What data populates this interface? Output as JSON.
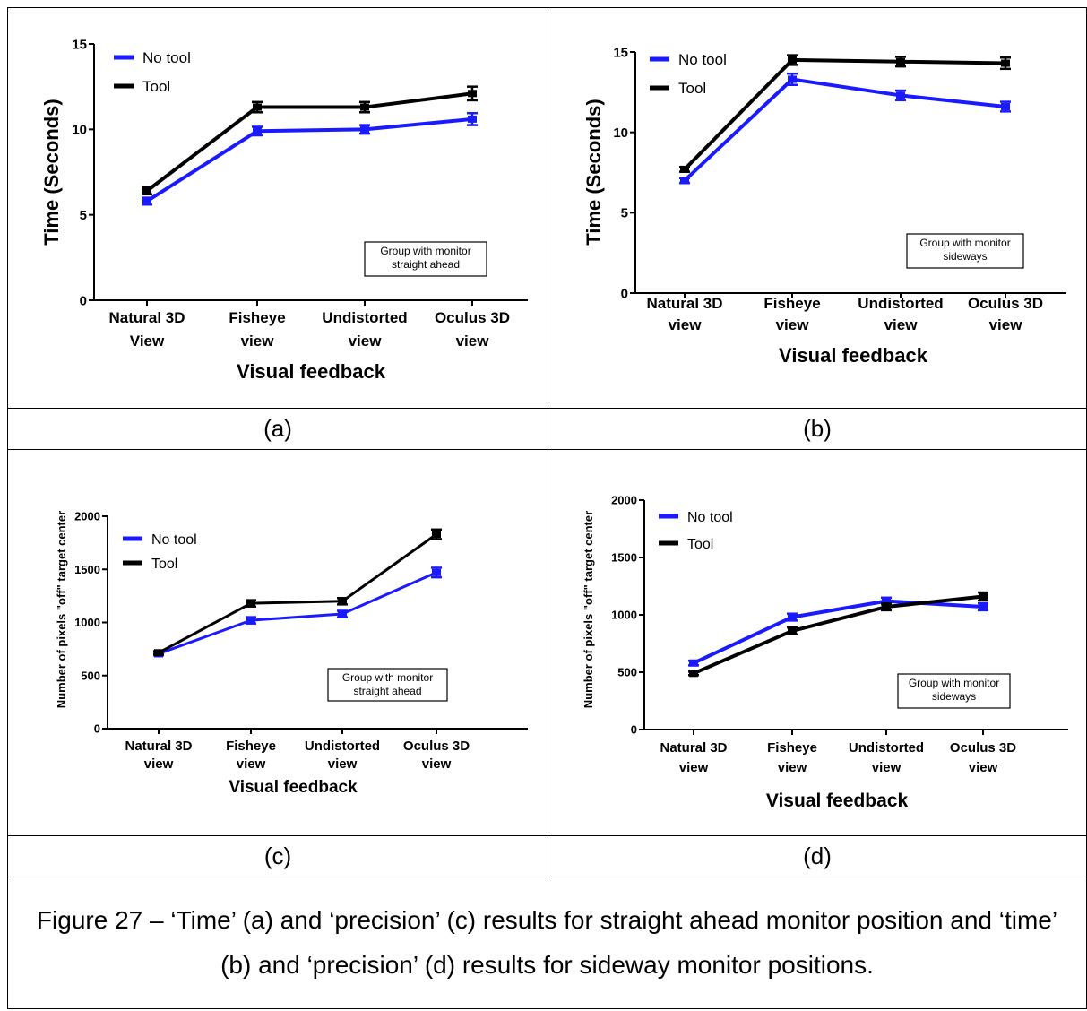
{
  "colors": {
    "no_tool": "#1a1aff",
    "tool": "#000000",
    "background": "#ffffff"
  },
  "panel_labels": [
    "(a)",
    "(b)",
    "(c)",
    "(d)"
  ],
  "caption": "Figure 27 – ‘Time’ (a) and ‘precision’ (c) results for straight ahead monitor position and ‘time’ (b) and ‘precision’ (d) results for sideway monitor positions.",
  "chart_data": [
    {
      "id": "a",
      "type": "line",
      "ylabel": "Time (Seconds)",
      "xlabel": "Visual feedback",
      "categories": [
        [
          "Natural 3D",
          "View"
        ],
        [
          "Fisheye",
          "view"
        ],
        [
          "Undistorted",
          "view"
        ],
        [
          "Oculus 3D",
          "view"
        ]
      ],
      "ylim": [
        0,
        15
      ],
      "yticks": [
        "0",
        "5",
        "10",
        "15"
      ],
      "legend": [
        "No tool",
        "Tool"
      ],
      "annotation": [
        "Group with monitor",
        "straight ahead"
      ],
      "series": [
        {
          "name": "No tool",
          "values": [
            5.8,
            9.9,
            10.0,
            10.6
          ],
          "errors": [
            0.2,
            0.25,
            0.25,
            0.35
          ]
        },
        {
          "name": "Tool",
          "values": [
            6.4,
            11.3,
            11.3,
            12.1
          ],
          "errors": [
            0.2,
            0.3,
            0.3,
            0.4
          ]
        }
      ]
    },
    {
      "id": "b",
      "type": "line",
      "ylabel": "Time (Seconds)",
      "xlabel": "Visual feedback",
      "categories": [
        [
          "Natural 3D",
          "view"
        ],
        [
          "Fisheye",
          "view"
        ],
        [
          "Undistorted",
          "view"
        ],
        [
          "Oculus 3D",
          "view"
        ]
      ],
      "ylim": [
        0,
        15
      ],
      "yticks": [
        "0",
        "5",
        "10",
        "15"
      ],
      "legend": [
        "No tool",
        "Tool"
      ],
      "annotation": [
        "Group with monitor",
        "sideways"
      ],
      "series": [
        {
          "name": "No tool",
          "values": [
            7.0,
            13.3,
            12.3,
            11.6
          ],
          "errors": [
            0.15,
            0.35,
            0.3,
            0.3
          ]
        },
        {
          "name": "Tool",
          "values": [
            7.7,
            14.5,
            14.4,
            14.3
          ],
          "errors": [
            0.15,
            0.3,
            0.3,
            0.35
          ]
        }
      ]
    },
    {
      "id": "c",
      "type": "line",
      "ylabel": "Number of pixels \"off\" target center",
      "xlabel": "Visual feedback",
      "categories": [
        [
          "Natural 3D",
          "view"
        ],
        [
          "Fisheye",
          "view"
        ],
        [
          "Undistorted",
          "view"
        ],
        [
          "Oculus 3D",
          "view"
        ]
      ],
      "ylim": [
        0,
        2000
      ],
      "yticks": [
        "0",
        "500",
        "1000",
        "1500",
        "2000"
      ],
      "legend": [
        "No tool",
        "Tool"
      ],
      "annotation": [
        "Group with monitor",
        "straight ahead"
      ],
      "series": [
        {
          "name": "No tool",
          "values": [
            705,
            1020,
            1080,
            1470
          ],
          "errors": [
            15,
            30,
            30,
            45
          ]
        },
        {
          "name": "Tool",
          "values": [
            715,
            1180,
            1200,
            1830
          ],
          "errors": [
            15,
            30,
            30,
            45
          ]
        }
      ]
    },
    {
      "id": "d",
      "type": "line",
      "ylabel": "Number of pixels \"off\" target center",
      "xlabel": "Visual feedback",
      "categories": [
        [
          "Natural 3D",
          "view"
        ],
        [
          "Fisheye",
          "view"
        ],
        [
          "Undistorted",
          "view"
        ],
        [
          "Oculus 3D",
          "view"
        ]
      ],
      "ylim": [
        0,
        2000
      ],
      "yticks": [
        "0",
        "500",
        "1000",
        "1500",
        "2000"
      ],
      "legend": [
        "No tool",
        "Tool"
      ],
      "annotation": [
        "Group with monitor",
        "sideways"
      ],
      "series": [
        {
          "name": "No tool",
          "values": [
            580,
            980,
            1120,
            1070
          ],
          "errors": [
            20,
            30,
            30,
            30
          ]
        },
        {
          "name": "Tool",
          "values": [
            490,
            860,
            1070,
            1160
          ],
          "errors": [
            15,
            30,
            30,
            35
          ]
        }
      ]
    }
  ]
}
